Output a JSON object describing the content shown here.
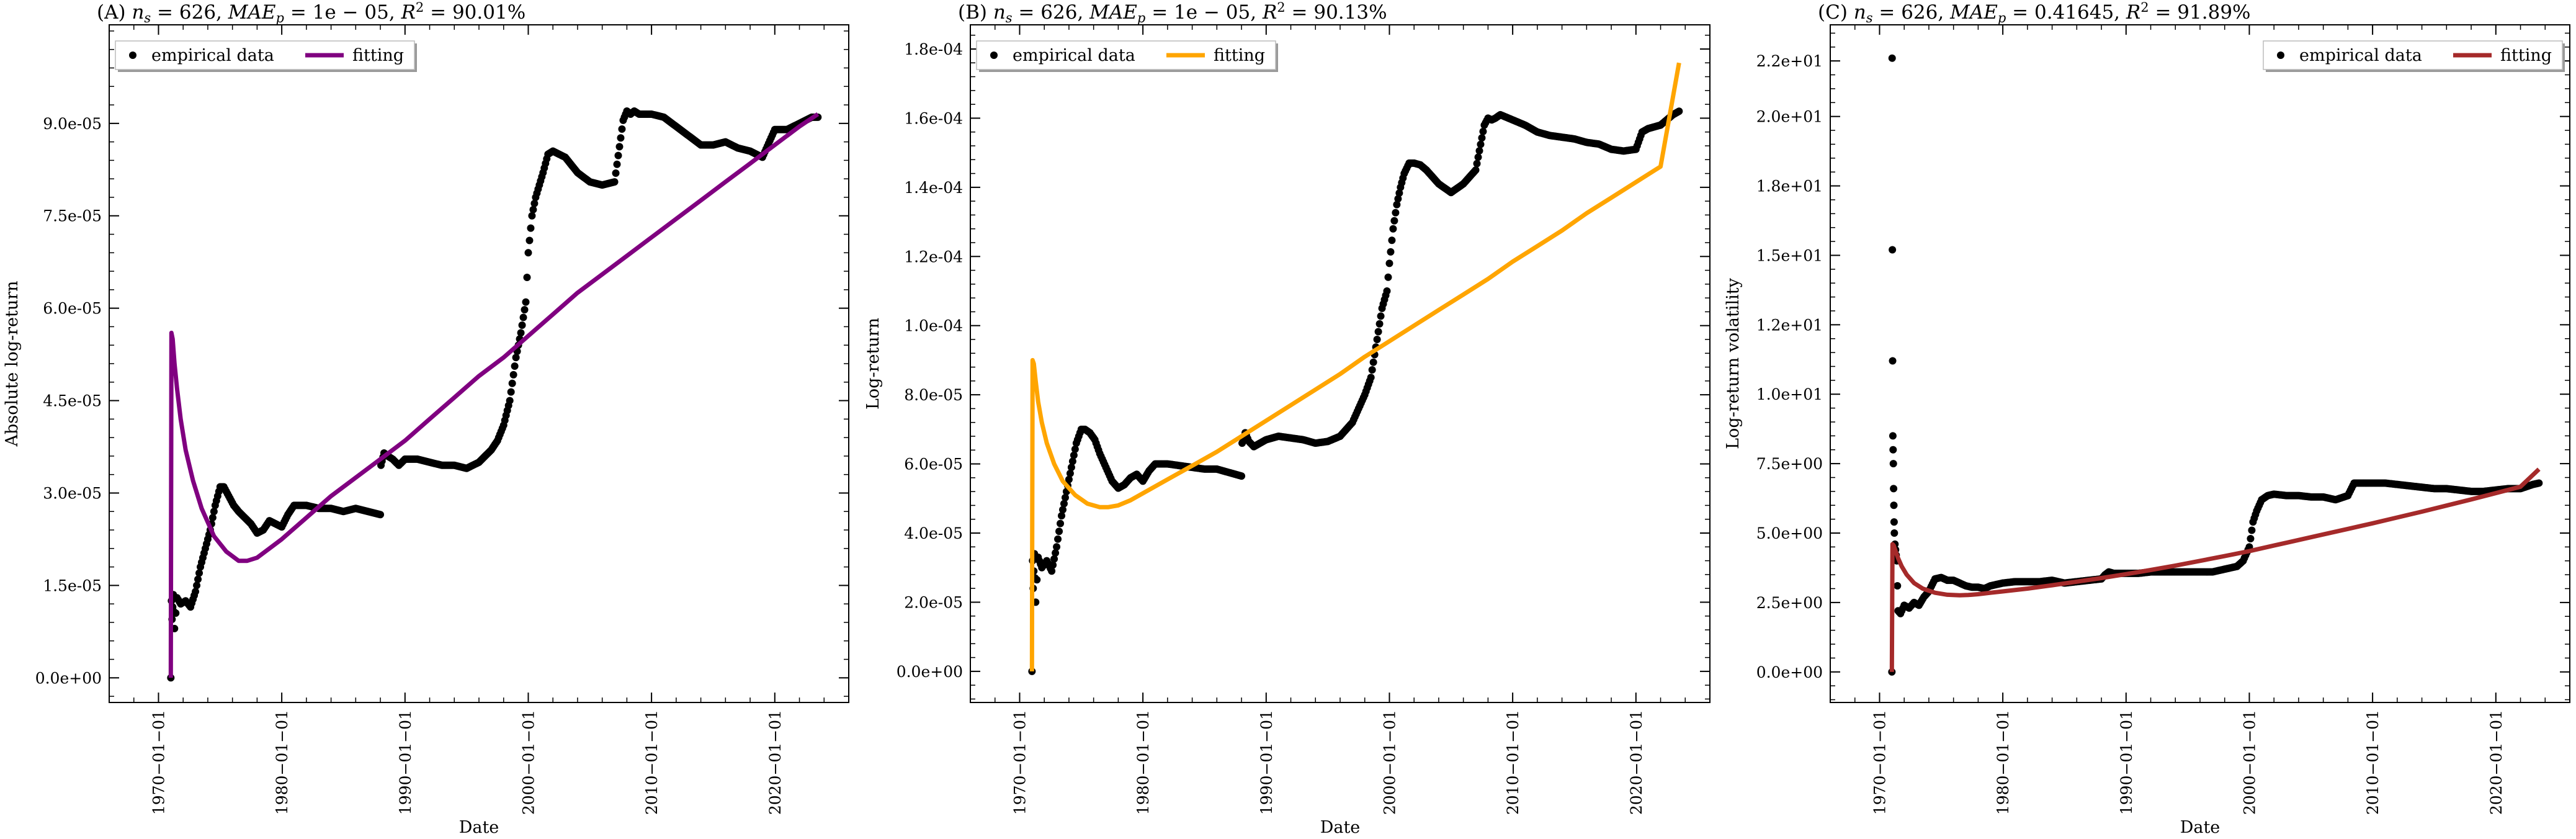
{
  "chart_data": [
    {
      "type": "line",
      "title": "(A) n_s = 626, MAE_p = 1e − 05, R^2 = 90.01%",
      "title_parts": {
        "prefix": "(A) ",
        "ns": "626",
        "mae": "1e − 05",
        "r2": "90.01%"
      },
      "xlabel": "Date",
      "ylabel": "Absolute log-return",
      "xticks": [
        "1970−01−01",
        "1980−01−01",
        "1990−01−01",
        "2000−01−01",
        "2010−01−01",
        "2020−01−01"
      ],
      "yticks": [
        "0.0e+00",
        "1.5e-05",
        "3.0e-05",
        "4.5e-05",
        "6.0e-05",
        "7.5e-05",
        "9.0e-05"
      ],
      "ylim": [
        -4e-06,
        0.000106
      ],
      "xlim": [
        1966.0,
        2026.0
      ],
      "legend": {
        "position": "top-left",
        "labels": [
          "empirical data",
          "fitting"
        ]
      },
      "colors": {
        "empirical": "#000000",
        "fitting": "#800080"
      },
      "empirical_data": {
        "x": [
          1971.0,
          1971.05,
          1971.1,
          1971.2,
          1971.3,
          1971.5,
          1971.8,
          1972.2,
          1972.6,
          1973.0,
          1973.4,
          1973.8,
          1974.2,
          1974.6,
          1975.0,
          1975.3,
          1975.7,
          1976.1,
          1976.5,
          1977.0,
          1977.5,
          1978.0,
          1978.5,
          1979.0,
          1979.5,
          1980.0,
          1980.5,
          1981.0,
          1982.0,
          1983.0,
          1984.0,
          1985.0,
          1986.0,
          1987.0,
          1988.0,
          1988.05,
          1988.3,
          1988.6,
          1989.0,
          1989.5,
          1990.0,
          1991.0,
          1992.0,
          1993.0,
          1994.0,
          1995.0,
          1996.0,
          1997.0,
          1997.5,
          1998.0,
          1998.5,
          1999.0,
          1999.4,
          1999.8,
          2000.0,
          2000.3,
          2000.6,
          2000.9,
          2001.2,
          2001.6,
          2002.0,
          2002.5,
          2003.0,
          2004.0,
          2005.0,
          2006.0,
          2007.0,
          2007.7,
          2008.0,
          2008.3,
          2008.6,
          2009.0,
          2010.0,
          2011.0,
          2012.0,
          2013.0,
          2014.0,
          2015.0,
          2016.0,
          2017.0,
          2018.0,
          2019.0,
          2020.0,
          2020.5,
          2021.0,
          2022.0,
          2023.0,
          2023.5
        ],
        "y": [
          0.0,
          1.25e-05,
          9.5e-06,
          1.35e-05,
          8e-06,
          1.3e-05,
          1.2e-05,
          1.25e-05,
          1.15e-05,
          1.4e-05,
          1.8e-05,
          2.1e-05,
          2.4e-05,
          2.8e-05,
          3.1e-05,
          3.1e-05,
          2.95e-05,
          2.8e-05,
          2.7e-05,
          2.6e-05,
          2.5e-05,
          2.35e-05,
          2.4e-05,
          2.55e-05,
          2.5e-05,
          2.45e-05,
          2.65e-05,
          2.8e-05,
          2.8e-05,
          2.75e-05,
          2.75e-05,
          2.7e-05,
          2.75e-05,
          2.7e-05,
          2.65e-05,
          3.45e-05,
          3.65e-05,
          3.6e-05,
          3.55e-05,
          3.45e-05,
          3.55e-05,
          3.55e-05,
          3.5e-05,
          3.45e-05,
          3.45e-05,
          3.4e-05,
          3.5e-05,
          3.7e-05,
          3.85e-05,
          4.1e-05,
          4.5e-05,
          5.2e-05,
          5.6e-05,
          6.1e-05,
          6.9e-05,
          7.5e-05,
          7.8e-05,
          8e-05,
          8.2e-05,
          8.5e-05,
          8.55e-05,
          8.5e-05,
          8.45e-05,
          8.2e-05,
          8.05e-05,
          8e-05,
          8.05e-05,
          9.05e-05,
          9.2e-05,
          9.15e-05,
          9.2e-05,
          9.15e-05,
          9.15e-05,
          9.1e-05,
          8.95e-05,
          8.8e-05,
          8.65e-05,
          8.65e-05,
          8.7e-05,
          8.6e-05,
          8.55e-05,
          8.45e-05,
          8.9e-05,
          8.9e-05,
          8.9e-05,
          9e-05,
          9.1e-05,
          9.1e-05
        ]
      },
      "fitting_curve": {
        "x": [
          1971.0,
          1971.05,
          1971.15,
          1971.3,
          1971.5,
          1971.8,
          1972.2,
          1972.8,
          1973.5,
          1974.5,
          1975.5,
          1976.5,
          1977.2,
          1978.0,
          1979.0,
          1980.0,
          1982.0,
          1984.0,
          1986.0,
          1988.0,
          1990.0,
          1992.0,
          1994.0,
          1996.0,
          1998.0,
          2000.0,
          2002.0,
          2004.0,
          2006.0,
          2008.0,
          2010.0,
          2012.0,
          2014.0,
          2016.0,
          2018.0,
          2020.0,
          2022.0,
          2023.5
        ],
        "y": [
          0.0,
          5.6e-05,
          5.5e-05,
          5.1e-05,
          4.7e-05,
          4.2e-05,
          3.7e-05,
          3.2e-05,
          2.75e-05,
          2.3e-05,
          2.05e-05,
          1.9e-05,
          1.9e-05,
          1.95e-05,
          2.1e-05,
          2.25e-05,
          2.6e-05,
          2.95e-05,
          3.25e-05,
          3.55e-05,
          3.85e-05,
          4.2e-05,
          4.55e-05,
          4.9e-05,
          5.2e-05,
          5.55e-05,
          5.9e-05,
          6.25e-05,
          6.55e-05,
          6.85e-05,
          7.15e-05,
          7.45e-05,
          7.75e-05,
          8.05e-05,
          8.35e-05,
          8.65e-05,
          8.95e-05,
          9.15e-05
        ]
      }
    },
    {
      "type": "line",
      "title": "(B) n_s = 626, MAE_p = 1e − 05, R^2 = 90.13%",
      "title_parts": {
        "prefix": "(B) ",
        "ns": "626",
        "mae": "1e − 05",
        "r2": "90.13%"
      },
      "xlabel": "Date",
      "ylabel": "Log-return",
      "xticks": [
        "1970−01−01",
        "1980−01−01",
        "1990−01−01",
        "2000−01−01",
        "2010−01−01",
        "2020−01−01"
      ],
      "yticks": [
        "0.0e+00",
        "2.0e-05",
        "4.0e-05",
        "6.0e-05",
        "8.0e-05",
        "1.0e-04",
        "1.2e-04",
        "1.4e-04",
        "1.6e-04",
        "1.8e-04"
      ],
      "ylim": [
        -9e-06,
        0.000187
      ],
      "xlim": [
        1966.0,
        2026.0
      ],
      "legend": {
        "position": "top-left",
        "labels": [
          "empirical data",
          "fitting"
        ]
      },
      "colors": {
        "empirical": "#000000",
        "fitting": "#ffa500"
      },
      "empirical_data": {
        "x": [
          1971.0,
          1971.05,
          1971.1,
          1971.2,
          1971.3,
          1971.5,
          1971.8,
          1972.2,
          1972.6,
          1973.0,
          1973.4,
          1973.8,
          1974.2,
          1974.6,
          1975.0,
          1975.3,
          1975.7,
          1976.1,
          1976.5,
          1977.0,
          1977.5,
          1978.0,
          1978.5,
          1979.0,
          1979.5,
          1980.0,
          1980.5,
          1981.0,
          1982.0,
          1983.0,
          1984.0,
          1985.0,
          1986.0,
          1987.0,
          1988.0,
          1988.05,
          1988.3,
          1988.6,
          1989.0,
          1989.5,
          1990.0,
          1991.0,
          1992.0,
          1993.0,
          1994.0,
          1995.0,
          1996.0,
          1997.0,
          1997.5,
          1998.0,
          1998.5,
          1999.0,
          1999.4,
          1999.8,
          2000.0,
          2000.3,
          2000.6,
          2000.9,
          2001.2,
          2001.6,
          2002.0,
          2002.5,
          2003.0,
          2004.0,
          2005.0,
          2006.0,
          2007.0,
          2007.7,
          2008.0,
          2008.3,
          2008.6,
          2009.0,
          2010.0,
          2011.0,
          2012.0,
          2013.0,
          2014.0,
          2015.0,
          2016.0,
          2017.0,
          2018.0,
          2019.0,
          2020.0,
          2020.5,
          2021.0,
          2022.0,
          2023.0,
          2023.5
        ],
        "y": [
          0.0,
          3.2e-05,
          2.4e-05,
          3.4e-05,
          2e-05,
          3.3e-05,
          3e-05,
          3.2e-05,
          2.9e-05,
          3.6e-05,
          4.5e-05,
          5.2e-05,
          5.9e-05,
          6.6e-05,
          7e-05,
          7e-05,
          6.9e-05,
          6.7e-05,
          6.3e-05,
          5.9e-05,
          5.5e-05,
          5.3e-05,
          5.4e-05,
          5.6e-05,
          5.7e-05,
          5.5e-05,
          5.8e-05,
          6e-05,
          6e-05,
          5.95e-05,
          5.9e-05,
          5.85e-05,
          5.85e-05,
          5.75e-05,
          5.65e-05,
          6.6e-05,
          6.9e-05,
          6.65e-05,
          6.5e-05,
          6.6e-05,
          6.7e-05,
          6.8e-05,
          6.75e-05,
          6.7e-05,
          6.6e-05,
          6.65e-05,
          6.8e-05,
          7.2e-05,
          7.6e-05,
          8e-05,
          8.5e-05,
          9.6e-05,
          0.000105,
          0.00011,
          0.000118,
          0.000128,
          0.000135,
          0.00014,
          0.000144,
          0.000147,
          0.000147,
          0.0001465,
          0.000145,
          0.000141,
          0.0001385,
          0.000141,
          0.000145,
          0.000158,
          0.00016,
          0.0001595,
          0.00016,
          0.000161,
          0.0001595,
          0.000158,
          0.000156,
          0.000155,
          0.0001545,
          0.000154,
          0.000153,
          0.0001525,
          0.000151,
          0.0001505,
          0.000151,
          0.000156,
          0.000157,
          0.000158,
          0.000161,
          0.000162
        ]
      },
      "fitting_curve": {
        "x": [
          1971.0,
          1971.05,
          1971.15,
          1971.3,
          1971.5,
          1971.8,
          1972.2,
          1972.8,
          1973.5,
          1974.5,
          1975.5,
          1976.5,
          1977.2,
          1978.0,
          1979.0,
          1980.0,
          1982.0,
          1984.0,
          1986.0,
          1988.0,
          1990.0,
          1992.0,
          1994.0,
          1996.0,
          1998.0,
          2000.0,
          2002.0,
          2004.0,
          2006.0,
          2008.0,
          2010.0,
          2012.0,
          2014.0,
          2016.0,
          2018.0,
          2020.0,
          2022.0,
          2023.5
        ],
        "y": [
          0.0,
          9e-05,
          8.9e-05,
          8.4e-05,
          7.8e-05,
          7.2e-05,
          6.6e-05,
          6e-05,
          5.5e-05,
          5.1e-05,
          4.85e-05,
          4.75e-05,
          4.75e-05,
          4.8e-05,
          4.95e-05,
          5.15e-05,
          5.55e-05,
          5.95e-05,
          6.35e-05,
          6.8e-05,
          7.25e-05,
          7.7e-05,
          8.15e-05,
          8.6e-05,
          9.1e-05,
          9.55e-05,
          0.0001,
          0.0001045,
          0.000109,
          0.0001135,
          0.0001185,
          0.000123,
          0.0001275,
          0.0001325,
          0.000137,
          0.0001415,
          0.000146,
          0.000176
        ]
      }
    },
    {
      "type": "line",
      "title": "(C) n_s = 626, MAE_p = 0.41645, R^2 = 91.89%",
      "title_parts": {
        "prefix": "(C) ",
        "ns": "626",
        "mae": "0.41645",
        "r2": "91.89%"
      },
      "xlabel": "Date",
      "ylabel": "Log-return volatility",
      "xticks": [
        "1970−01−01",
        "1980−01−01",
        "1990−01−01",
        "2000−01−01",
        "2010−01−01",
        "2020−01−01"
      ],
      "yticks": [
        "0.0e+00",
        "2.5e+00",
        "5.0e+00",
        "7.5e+00",
        "1.0e+01",
        "1.2e+01",
        "1.5e+01",
        "1.8e+01",
        "2.0e+01",
        "2.2e+01"
      ],
      "ylim": [
        -1.1,
        23.3
      ],
      "xlim": [
        1966.0,
        2026.0
      ],
      "legend": {
        "position": "top-right",
        "labels": [
          "empirical data",
          "fitting"
        ]
      },
      "colors": {
        "empirical": "#000000",
        "fitting": "#a52a2a"
      },
      "empirical_data": {
        "x": [
          1971.0,
          1971.02,
          1971.04,
          1971.06,
          1971.08,
          1971.1,
          1971.12,
          1971.14,
          1971.16,
          1971.18,
          1971.2,
          1971.25,
          1971.3,
          1971.4,
          1971.5,
          1971.7,
          1972.0,
          1972.4,
          1972.8,
          1973.2,
          1973.6,
          1974.0,
          1974.5,
          1975.0,
          1975.5,
          1976.0,
          1976.5,
          1977.0,
          1977.5,
          1978.0,
          1978.5,
          1979.0,
          1979.5,
          1980.0,
          1981.0,
          1982.0,
          1983.0,
          1984.0,
          1985.0,
          1986.0,
          1987.0,
          1988.0,
          1988.3,
          1988.6,
          1989.0,
          1990.0,
          1991.0,
          1992.0,
          1993.0,
          1994.0,
          1995.0,
          1996.0,
          1997.0,
          1998.0,
          1999.0,
          1999.5,
          2000.0,
          2000.3,
          2000.6,
          2001.0,
          2001.5,
          2002.0,
          2003.0,
          2004.0,
          2005.0,
          2006.0,
          2007.0,
          2008.0,
          2008.5,
          2009.0,
          2010.0,
          2011.0,
          2012.0,
          2013.0,
          2014.0,
          2015.0,
          2016.0,
          2017.0,
          2018.0,
          2019.0,
          2020.0,
          2021.0,
          2022.0,
          2023.0,
          2023.5
        ],
        "y": [
          0.0,
          22.1,
          15.2,
          11.2,
          8.5,
          8.0,
          7.5,
          6.6,
          6.0,
          5.4,
          5.0,
          4.6,
          4.4,
          4.0,
          2.2,
          2.1,
          2.4,
          2.3,
          2.5,
          2.4,
          2.7,
          2.9,
          3.35,
          3.4,
          3.3,
          3.3,
          3.2,
          3.1,
          3.05,
          3.05,
          3.0,
          3.1,
          3.15,
          3.2,
          3.25,
          3.25,
          3.25,
          3.3,
          3.2,
          3.25,
          3.3,
          3.35,
          3.5,
          3.6,
          3.55,
          3.55,
          3.55,
          3.6,
          3.6,
          3.6,
          3.6,
          3.6,
          3.6,
          3.7,
          3.8,
          4.0,
          4.5,
          5.4,
          5.8,
          6.2,
          6.35,
          6.4,
          6.35,
          6.35,
          6.3,
          6.3,
          6.2,
          6.35,
          6.8,
          6.8,
          6.8,
          6.8,
          6.75,
          6.7,
          6.65,
          6.6,
          6.6,
          6.55,
          6.5,
          6.5,
          6.55,
          6.6,
          6.6,
          6.75,
          6.8
        ]
      },
      "fitting_curve": {
        "x": [
          1971.0,
          1971.05,
          1971.15,
          1971.3,
          1971.5,
          1971.8,
          1972.2,
          1972.8,
          1973.5,
          1974.5,
          1975.5,
          1976.5,
          1977.2,
          1978.0,
          1979.0,
          1980.0,
          1982.0,
          1984.0,
          1986.0,
          1988.0,
          1990.0,
          1992.0,
          1994.0,
          1996.0,
          1998.0,
          2000.0,
          2002.0,
          2004.0,
          2006.0,
          2008.0,
          2010.0,
          2012.0,
          2014.0,
          2016.0,
          2018.0,
          2020.0,
          2022.0,
          2023.5
        ],
        "y": [
          0.0,
          4.6,
          4.55,
          4.35,
          4.1,
          3.8,
          3.5,
          3.2,
          3.0,
          2.85,
          2.78,
          2.76,
          2.77,
          2.8,
          2.85,
          2.9,
          3.0,
          3.12,
          3.25,
          3.38,
          3.52,
          3.67,
          3.83,
          4.0,
          4.17,
          4.35,
          4.55,
          4.75,
          4.95,
          5.15,
          5.35,
          5.56,
          5.77,
          5.99,
          6.21,
          6.44,
          6.67,
          7.3
        ]
      }
    }
  ]
}
